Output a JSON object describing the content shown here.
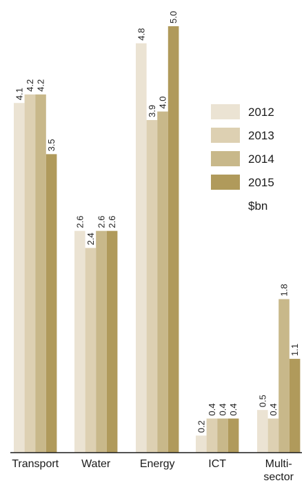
{
  "chart_data": {
    "type": "bar",
    "categories": [
      "Transport",
      "Water",
      "Energy",
      "ICT",
      "Multi-\nsector"
    ],
    "series": [
      {
        "name": "2012",
        "color": "#ebe3d3",
        "values": [
          4.1,
          2.6,
          4.8,
          0.2,
          0.5
        ]
      },
      {
        "name": "2013",
        "color": "#ddd0b2",
        "values": [
          4.2,
          2.4,
          3.9,
          0.4,
          0.4
        ]
      },
      {
        "name": "2014",
        "color": "#c8b88a",
        "values": [
          4.2,
          2.6,
          4.0,
          0.4,
          1.8
        ]
      },
      {
        "name": "2015",
        "color": "#b09a5b",
        "values": [
          3.5,
          2.6,
          5.0,
          0.4,
          1.1
        ]
      }
    ],
    "unit_label": "$bn",
    "ylim": [
      0,
      5.0
    ],
    "legend_position": "right",
    "grid": false
  }
}
